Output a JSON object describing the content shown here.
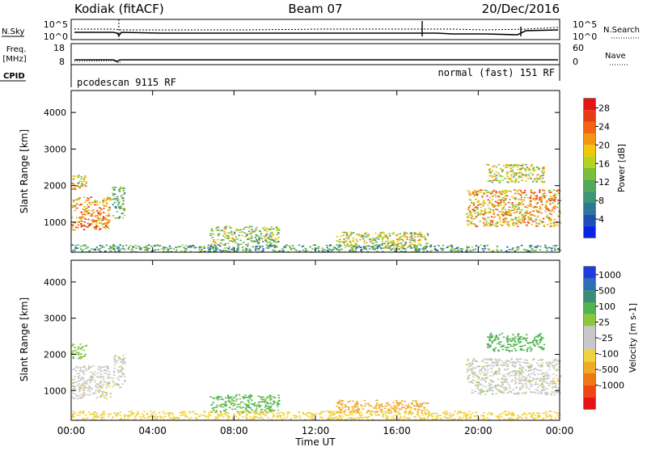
{
  "header": {
    "station": "Kodiak (fitACF)",
    "beam": "Beam 07",
    "date": "20/Dec/2016"
  },
  "top_panels": {
    "nsky_label": "N.Sky",
    "nsearch_label": "N.Search",
    "noise_ticks": [
      "10^5",
      "10^0"
    ],
    "freq_label": "Freq.",
    "freq_unit": "[MHz]",
    "freq_ticks": [
      "18",
      "8"
    ],
    "nave_label": "Nave",
    "nave_ticks": [
      "60",
      "0"
    ],
    "cpid_label": "CPID",
    "cpid_left": "pcodescan 9115 RF",
    "cpid_right": "normal (fast) 151 RF"
  },
  "colors": {
    "power_scale": [
      "#0a23e6",
      "#1e50b4",
      "#2d7896",
      "#3c9678",
      "#50aa5a",
      "#78be3c",
      "#b4d21e",
      "#f0c80a",
      "#f09614",
      "#f06414",
      "#e63c14",
      "#e61414"
    ],
    "velocity_scale": [
      "#e61414",
      "#f04614",
      "#f07814",
      "#f0aa28",
      "#f0d23c",
      "#c8c8c8",
      "#c8c8c8",
      "#8cc83c",
      "#50b450",
      "#3c8c78",
      "#2d6eb4",
      "#1e3cdc"
    ]
  },
  "chart_data": [
    {
      "type": "heatmap",
      "title": "",
      "xlabel": "Time UT",
      "ylabel": "Slant Range [km]",
      "x_ticks": [
        "00:00",
        "04:00",
        "08:00",
        "12:00",
        "16:00",
        "20:00",
        "00:00"
      ],
      "x_range_hours": [
        0,
        24
      ],
      "y_ticks": [
        "1000",
        "2000",
        "3000",
        "4000"
      ],
      "ylim": [
        180,
        4600
      ],
      "colorbar": {
        "label": "Power [dB]",
        "ticks": [
          "4",
          "8",
          "12",
          "16",
          "20",
          "24",
          "28"
        ],
        "range": [
          0,
          30
        ]
      },
      "regions": [
        {
          "t0": 0.0,
          "t1": 1.9,
          "r0": 800,
          "r1": 1700,
          "level": 22
        },
        {
          "t0": 0.0,
          "t1": 0.7,
          "r0": 1900,
          "r1": 2300,
          "level": 18
        },
        {
          "t0": 2.0,
          "t1": 2.6,
          "r0": 1100,
          "r1": 2000,
          "level": 12
        },
        {
          "t0": 6.8,
          "t1": 10.2,
          "r0": 400,
          "r1": 900,
          "level": 14
        },
        {
          "t0": 13.0,
          "t1": 17.5,
          "r0": 300,
          "r1": 750,
          "level": 16
        },
        {
          "t0": 19.4,
          "t1": 24.0,
          "r0": 900,
          "r1": 1900,
          "level": 20
        },
        {
          "t0": 20.4,
          "t1": 23.2,
          "r0": 2100,
          "r1": 2600,
          "level": 16
        },
        {
          "t0": 0.0,
          "t1": 24.0,
          "r0": 200,
          "r1": 400,
          "level": 10
        }
      ]
    },
    {
      "type": "heatmap",
      "title": "",
      "xlabel": "Time UT",
      "ylabel": "Slant Range [km]",
      "x_ticks": [
        "00:00",
        "04:00",
        "08:00",
        "12:00",
        "16:00",
        "20:00",
        "00:00"
      ],
      "x_range_hours": [
        0,
        24
      ],
      "y_ticks": [
        "1000",
        "2000",
        "3000",
        "4000"
      ],
      "ylim": [
        180,
        4600
      ],
      "colorbar": {
        "label": "Velocity [m s-1]",
        "ticks": [
          "-1000",
          "-500",
          "-100",
          "-25",
          "25",
          "100",
          "500",
          "1000"
        ]
      },
      "regions": [
        {
          "t0": 0.0,
          "t1": 1.9,
          "r0": 800,
          "r1": 1700,
          "level": 0
        },
        {
          "t0": 0.0,
          "t1": 0.7,
          "r0": 1900,
          "r1": 2300,
          "level": 80
        },
        {
          "t0": 2.0,
          "t1": 2.6,
          "r0": 1100,
          "r1": 2000,
          "level": 0
        },
        {
          "t0": 6.8,
          "t1": 10.2,
          "r0": 400,
          "r1": 900,
          "level": 120
        },
        {
          "t0": 13.0,
          "t1": 17.5,
          "r0": 400,
          "r1": 750,
          "level": -150
        },
        {
          "t0": 19.4,
          "t1": 24.0,
          "r0": 900,
          "r1": 1900,
          "level": 0
        },
        {
          "t0": 20.4,
          "t1": 23.2,
          "r0": 2100,
          "r1": 2600,
          "level": 150
        },
        {
          "t0": 0.0,
          "t1": 24.0,
          "r0": 200,
          "r1": 450,
          "level": -60
        }
      ]
    }
  ]
}
